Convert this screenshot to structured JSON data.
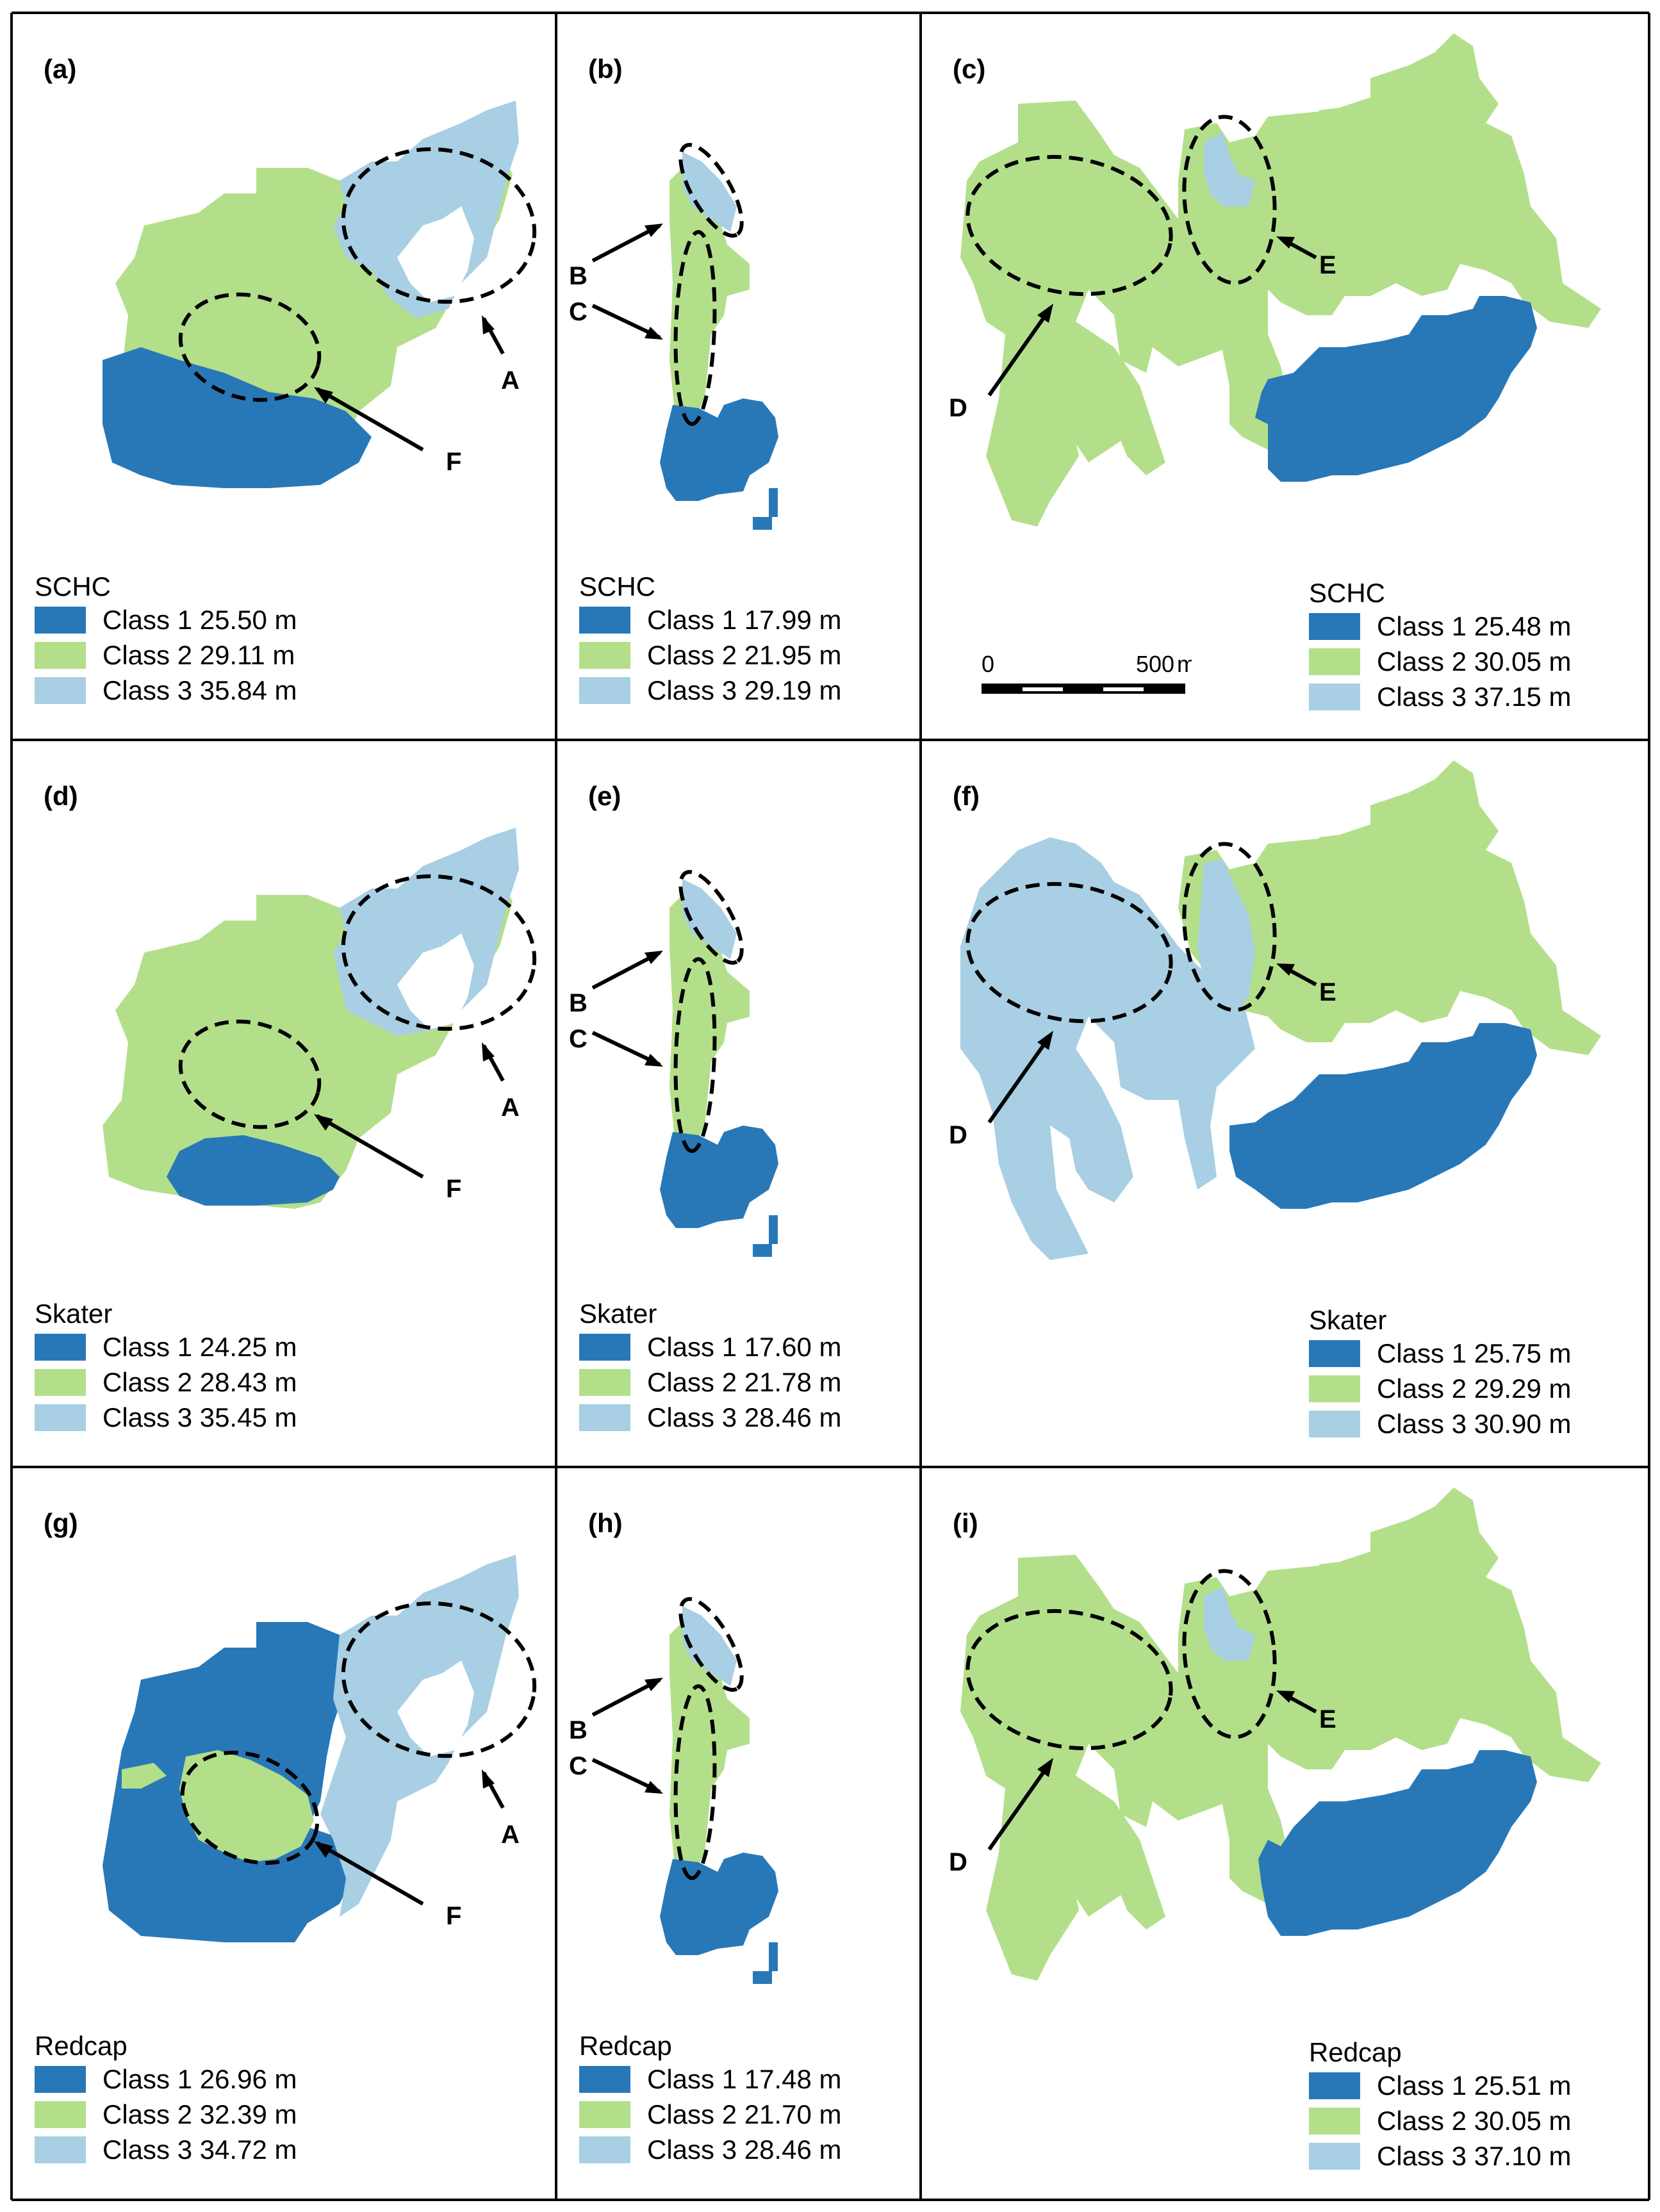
{
  "colors": {
    "class1": "#2878b8",
    "class2": "#b3df8a",
    "class3": "#a8cfe3",
    "ellipse": "#000000",
    "border": "#000000"
  },
  "panels": [
    {
      "id": "a",
      "label": "(a)",
      "legend": {
        "title": "SCHC",
        "items": [
          "Class 1 25.50 m",
          "Class 2 29.11 m",
          "Class 3 35.84 m"
        ]
      }
    },
    {
      "id": "b",
      "label": "(b)",
      "legend": {
        "title": "SCHC",
        "items": [
          "Class 1 17.99 m",
          "Class 2 21.95 m",
          "Class 3 29.19 m"
        ]
      }
    },
    {
      "id": "c",
      "label": "(c)",
      "legend": {
        "title": "SCHC",
        "items": [
          "Class 1 25.48 m",
          "Class 2 30.05 m",
          "Class 3 37.15 m"
        ]
      }
    },
    {
      "id": "d",
      "label": "(d)",
      "legend": {
        "title": "Skater",
        "items": [
          "Class 1 24.25 m",
          "Class 2 28.43 m",
          "Class 3 35.45 m"
        ]
      }
    },
    {
      "id": "e",
      "label": "(e)",
      "legend": {
        "title": "Skater",
        "items": [
          "Class 1 17.60 m",
          "Class 2 21.78 m",
          "Class 3 28.46 m"
        ]
      }
    },
    {
      "id": "f",
      "label": "(f)",
      "legend": {
        "title": "Skater",
        "items": [
          "Class 1 25.75 m",
          "Class 2 29.29 m",
          "Class 3 30.90 m"
        ]
      }
    },
    {
      "id": "g",
      "label": "(g)",
      "legend": {
        "title": "Redcap",
        "items": [
          "Class 1 26.96 m",
          "Class 2 32.39 m",
          "Class 3 34.72 m"
        ]
      }
    },
    {
      "id": "h",
      "label": "(h)",
      "legend": {
        "title": "Redcap",
        "items": [
          "Class 1 17.48 m",
          "Class 2 21.70 m",
          "Class 3 28.46 m"
        ]
      }
    },
    {
      "id": "i",
      "label": "(i)",
      "legend": {
        "title": "Redcap",
        "items": [
          "Class 1 25.51 m",
          "Class 2 30.05 m",
          "Class 3 37.10 m"
        ]
      }
    }
  ],
  "annotations": {
    "A": "A",
    "B": "B",
    "C": "C",
    "D": "D",
    "E": "E",
    "F": "F"
  },
  "scalebar": {
    "start": "0",
    "end": "500",
    "unit": "m"
  }
}
